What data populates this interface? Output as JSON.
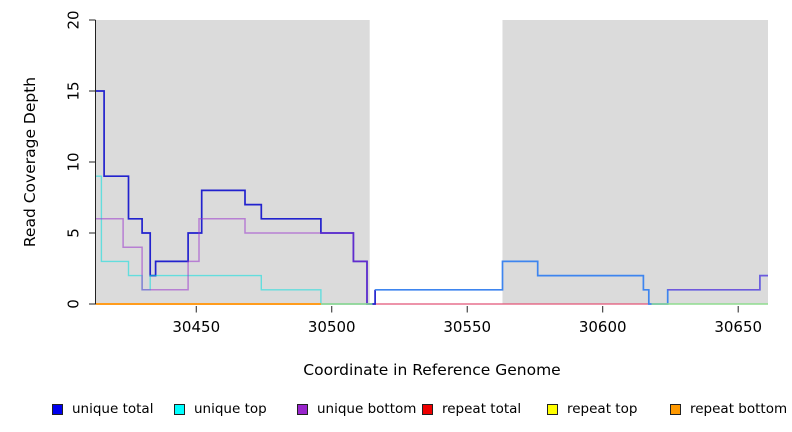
{
  "axes": {
    "ylabel": "Read Coverage Depth",
    "xlabel": "Coordinate in Reference Genome"
  },
  "chart_data": {
    "type": "line",
    "subtype": "step",
    "title": "",
    "xlabel": "Coordinate in Reference Genome",
    "ylabel": "Read Coverage Depth",
    "xlim": [
      30413,
      30661
    ],
    "ylim": [
      0,
      20
    ],
    "x_ticks": [
      30450,
      30500,
      30550,
      30600,
      30650
    ],
    "y_ticks": [
      0,
      5,
      10,
      15,
      20
    ],
    "grid": false,
    "panel_color": "#dbdbdb",
    "gap_color": "#ffffff",
    "unshaded_gap": [
      30514,
      30563
    ],
    "legend_position": "bottom",
    "legend": [
      {
        "label": "unique total",
        "color": "#0000ee"
      },
      {
        "label": "unique top",
        "color": "#00ffff"
      },
      {
        "label": "unique bottom",
        "color": "#9925cc"
      },
      {
        "label": "repeat total",
        "color": "#ee0000"
      },
      {
        "label": "repeat top",
        "color": "#ffff00"
      },
      {
        "label": "repeat bottom",
        "color": "#ff9900"
      }
    ],
    "legend_item_x": [
      52,
      174,
      297,
      422,
      547,
      670
    ],
    "series": [
      {
        "name": "repeat total",
        "color": "#e25577",
        "width": 1.3,
        "opacity": 1,
        "steps": [
          [
            30413,
            0
          ]
        ],
        "end": 30618
      },
      {
        "name": "unique total",
        "color": "#2222ce",
        "width": 1.7,
        "opacity": 1,
        "steps": [
          [
            30413,
            15
          ],
          [
            30416,
            9
          ],
          [
            30425,
            6
          ],
          [
            30430,
            5
          ],
          [
            30433,
            2
          ],
          [
            30435,
            3
          ],
          [
            30447,
            5
          ],
          [
            30452,
            8
          ],
          [
            30468,
            7
          ],
          [
            30474,
            6
          ],
          [
            30496,
            5
          ],
          [
            30508,
            3
          ],
          [
            30513,
            0
          ],
          [
            30516,
            1
          ]
        ],
        "end": 30516
      },
      {
        "name": "unique total",
        "color": "#3e85ef",
        "width": 1.7,
        "opacity": 1,
        "steps": [
          [
            30516,
            1
          ],
          [
            30563,
            3
          ],
          [
            30576,
            2
          ],
          [
            30615,
            1
          ],
          [
            30617,
            0
          ],
          [
            30624,
            1
          ],
          [
            30658,
            2
          ]
        ],
        "end": 30661
      },
      {
        "name": "unique top",
        "color": "#00dfdf",
        "width": 1.4,
        "opacity": 0.55,
        "steps": [
          [
            30413,
            9
          ],
          [
            30415,
            3
          ],
          [
            30425,
            2
          ],
          [
            30430,
            1
          ],
          [
            30433,
            2
          ],
          [
            30474,
            1
          ],
          [
            30496,
            0
          ]
        ],
        "end": 30515
      },
      {
        "name": "unique bottom",
        "color": "#9933cc",
        "width": 1.5,
        "opacity": 0.55,
        "steps": [
          [
            30413,
            6
          ],
          [
            30423,
            4
          ],
          [
            30430,
            1
          ],
          [
            30447,
            3
          ],
          [
            30451,
            6
          ],
          [
            30468,
            5
          ],
          [
            30508,
            3
          ],
          [
            30513,
            0
          ]
        ],
        "end": 30514
      },
      {
        "name": "unique bottom",
        "color": "#9933cc",
        "width": 1.5,
        "opacity": 0.55,
        "steps": [
          [
            30624,
            1
          ],
          [
            30658,
            2
          ]
        ],
        "end": 30661
      },
      {
        "name": "repeat top",
        "color": "#8fdc8f",
        "width": 1.4,
        "opacity": 1,
        "steps": [
          [
            30496,
            0
          ]
        ],
        "end": 30515
      },
      {
        "name": "repeat top",
        "color": "#8fdc8f",
        "width": 1.4,
        "opacity": 1,
        "steps": [
          [
            30618,
            0
          ]
        ],
        "end": 30661
      },
      {
        "name": "repeat bottom",
        "color": "#ff9c1c",
        "width": 1.9,
        "opacity": 1,
        "steps": [
          [
            30413,
            0
          ]
        ],
        "end": 30496
      }
    ]
  }
}
